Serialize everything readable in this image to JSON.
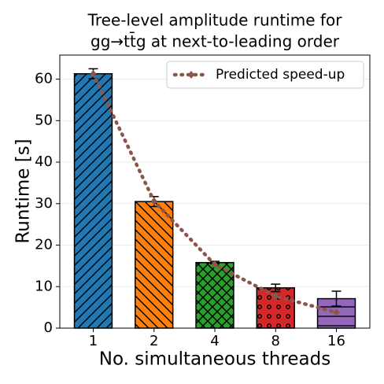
{
  "chart_data": {
    "type": "bar",
    "title": [
      "Tree-level amplitude runtime for",
      "gg→tt̄g at next-to-leading order"
    ],
    "xlabel": "No. simultaneous threads",
    "ylabel": "Runtime [s]",
    "categories": [
      "1",
      "2",
      "4",
      "8",
      "16"
    ],
    "series": [
      {
        "type": "bar",
        "values": [
          61.3,
          30.5,
          15.8,
          9.7,
          7.1
        ],
        "errors": [
          1.2,
          1.2,
          0.3,
          0.9,
          1.8
        ],
        "colors": [
          "#1f77b4",
          "#ff7f0e",
          "#2ca02c",
          "#d62728",
          "#9467bd"
        ],
        "hatches": [
          "/",
          "\\",
          "x",
          "o",
          "-"
        ]
      },
      {
        "type": "line",
        "name": "Predicted speed-up",
        "color": "#8c564b",
        "values": [
          61.3,
          30.6,
          15.3,
          7.7,
          3.8
        ]
      }
    ],
    "ylim": [
      0,
      65.8
    ],
    "yticks": [
      0,
      10,
      20,
      30,
      40,
      50,
      60
    ],
    "grid": true,
    "legend": "upper right"
  }
}
